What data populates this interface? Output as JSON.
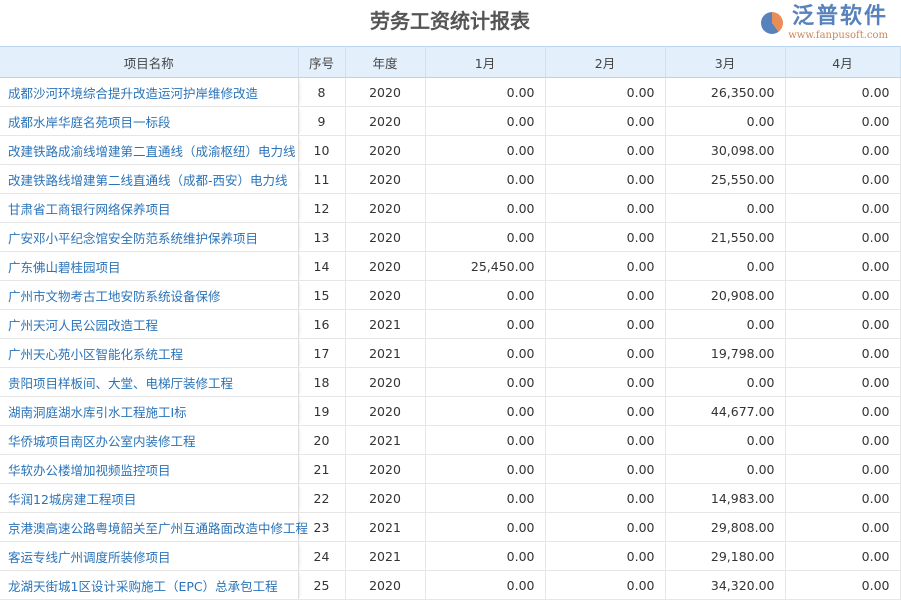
{
  "title": "劳务工资统计报表",
  "columns": [
    "项目名称",
    "序号",
    "年度",
    "1月",
    "2月",
    "3月",
    "4月"
  ],
  "rows": [
    [
      "成都沙河环境综合提升改造运河护岸维修改造",
      "8",
      "2020",
      "0.00",
      "0.00",
      "26,350.00",
      "0.00"
    ],
    [
      "成都水岸华庭名苑项目一标段",
      "9",
      "2020",
      "0.00",
      "0.00",
      "0.00",
      "0.00"
    ],
    [
      "改建铁路成渝线增建第二直通线（成渝枢纽）电力线",
      "10",
      "2020",
      "0.00",
      "0.00",
      "30,098.00",
      "0.00"
    ],
    [
      "改建铁路线增建第二线直通线（成都-西安）电力线",
      "11",
      "2020",
      "0.00",
      "0.00",
      "25,550.00",
      "0.00"
    ],
    [
      "甘肃省工商银行网络保养项目",
      "12",
      "2020",
      "0.00",
      "0.00",
      "0.00",
      "0.00"
    ],
    [
      "广安邓小平纪念馆安全防范系统维护保养项目",
      "13",
      "2020",
      "0.00",
      "0.00",
      "21,550.00",
      "0.00"
    ],
    [
      "广东佛山碧桂园项目",
      "14",
      "2020",
      "25,450.00",
      "0.00",
      "0.00",
      "0.00"
    ],
    [
      "广州市文物考古工地安防系统设备保修",
      "15",
      "2020",
      "0.00",
      "0.00",
      "20,908.00",
      "0.00"
    ],
    [
      "广州天河人民公园改造工程",
      "16",
      "2021",
      "0.00",
      "0.00",
      "0.00",
      "0.00"
    ],
    [
      "广州天心苑小区智能化系统工程",
      "17",
      "2021",
      "0.00",
      "0.00",
      "19,798.00",
      "0.00"
    ],
    [
      "贵阳项目样板间、大堂、电梯厅装修工程",
      "18",
      "2020",
      "0.00",
      "0.00",
      "0.00",
      "0.00"
    ],
    [
      "湖南洞庭湖水库引水工程施工I标",
      "19",
      "2020",
      "0.00",
      "0.00",
      "44,677.00",
      "0.00"
    ],
    [
      "华侨城项目南区办公室内装修工程",
      "20",
      "2021",
      "0.00",
      "0.00",
      "0.00",
      "0.00"
    ],
    [
      "华软办公楼增加视频监控项目",
      "21",
      "2020",
      "0.00",
      "0.00",
      "0.00",
      "0.00"
    ],
    [
      "华润12城房建工程项目",
      "22",
      "2020",
      "0.00",
      "0.00",
      "14,983.00",
      "0.00"
    ],
    [
      "京港澳高速公路粤境韶关至广州互通路面改造中修工程",
      "23",
      "2021",
      "0.00",
      "0.00",
      "29,808.00",
      "0.00"
    ],
    [
      "客运专线广州调度所装修项目",
      "24",
      "2021",
      "0.00",
      "0.00",
      "29,180.00",
      "0.00"
    ],
    [
      "龙湖天街城1区设计采购施工（EPC）总承包工程",
      "25",
      "2020",
      "0.00",
      "0.00",
      "34,320.00",
      "0.00"
    ]
  ],
  "watermark": {
    "brand": "泛普软件",
    "url": "www.fanpusoft.com"
  }
}
